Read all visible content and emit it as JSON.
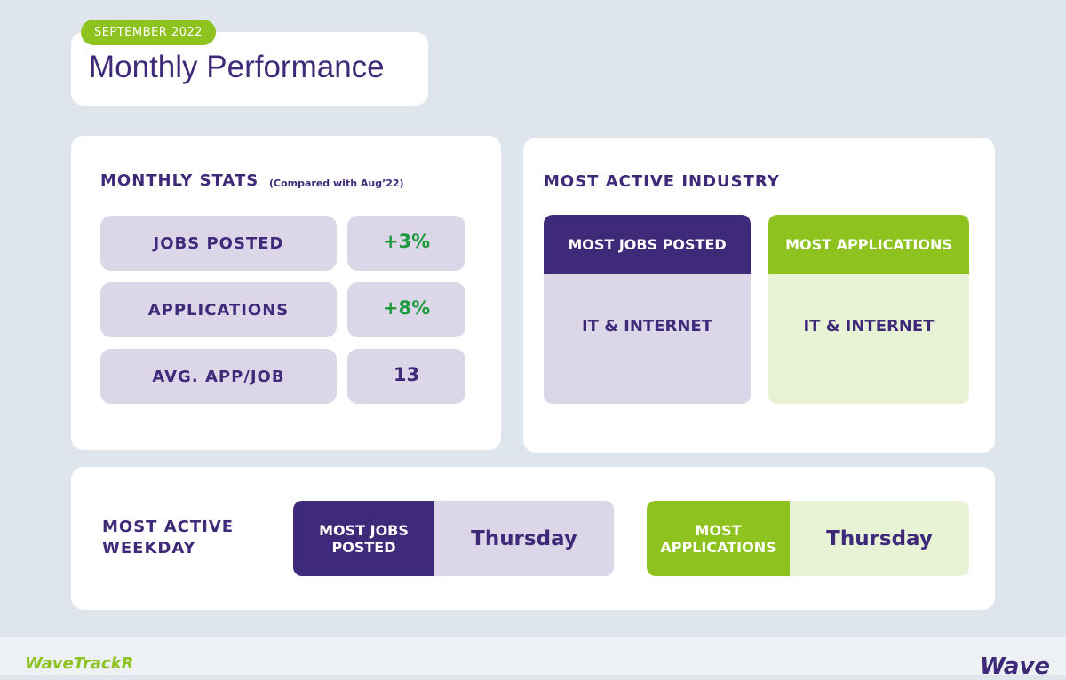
{
  "header": {
    "badge": "SEPTEMBER 2022",
    "title": "Monthly Performance"
  },
  "monthly_stats": {
    "title": "MONTHLY STATS",
    "note": "(Compared with Aug’22)",
    "rows": [
      [
        "JOBS POSTED",
        "+3%"
      ],
      [
        "APPLICATIONS",
        "+8%"
      ],
      [
        "AVG. APP/JOB",
        "13"
      ]
    ]
  },
  "industry": {
    "title": "MOST ACTIVE INDUSTRY",
    "cards": [
      {
        "label": "MOST JOBS POSTED",
        "value": "IT & INTERNET"
      },
      {
        "label": "MOST APPLICATIONS",
        "value": "IT & INTERNET"
      }
    ]
  },
  "weekday": {
    "title": "MOST ACTIVE WEEKDAY",
    "cards": [
      {
        "label": "MOST JOBS POSTED",
        "value": "Thursday"
      },
      {
        "label": "MOST APPLICATIONS",
        "value": "Thursday"
      }
    ]
  },
  "footer": {
    "brand": "WaveTrackR",
    "logo": "Wave"
  }
}
